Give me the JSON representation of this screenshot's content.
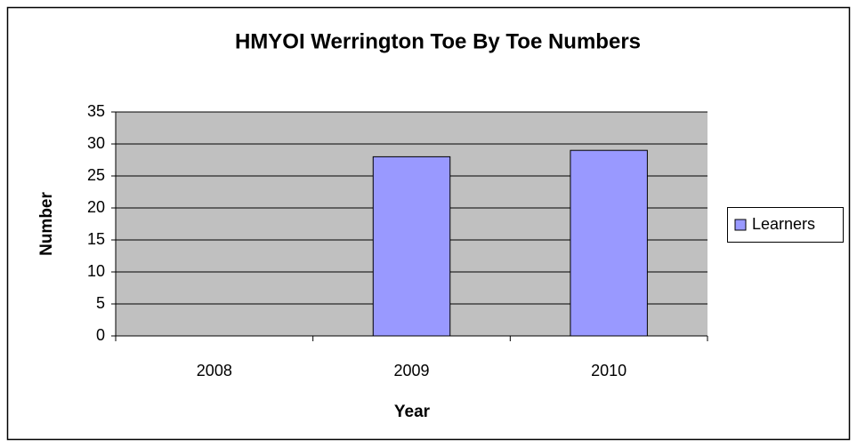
{
  "chart_data": {
    "type": "bar",
    "title": "HMYOI Werrington Toe By Toe Numbers",
    "x_label": "Year",
    "y_label": "Number",
    "categories": [
      "2008",
      "2009",
      "2010"
    ],
    "series": [
      {
        "name": "Learners",
        "color": "#9999ff",
        "values": [
          0,
          28,
          29
        ]
      }
    ],
    "ylim": [
      0,
      35
    ],
    "yticks": [
      0,
      5,
      10,
      15,
      20,
      25,
      30,
      35
    ],
    "grid": true,
    "legend": "right",
    "plot_background": "#c0c0c0"
  }
}
